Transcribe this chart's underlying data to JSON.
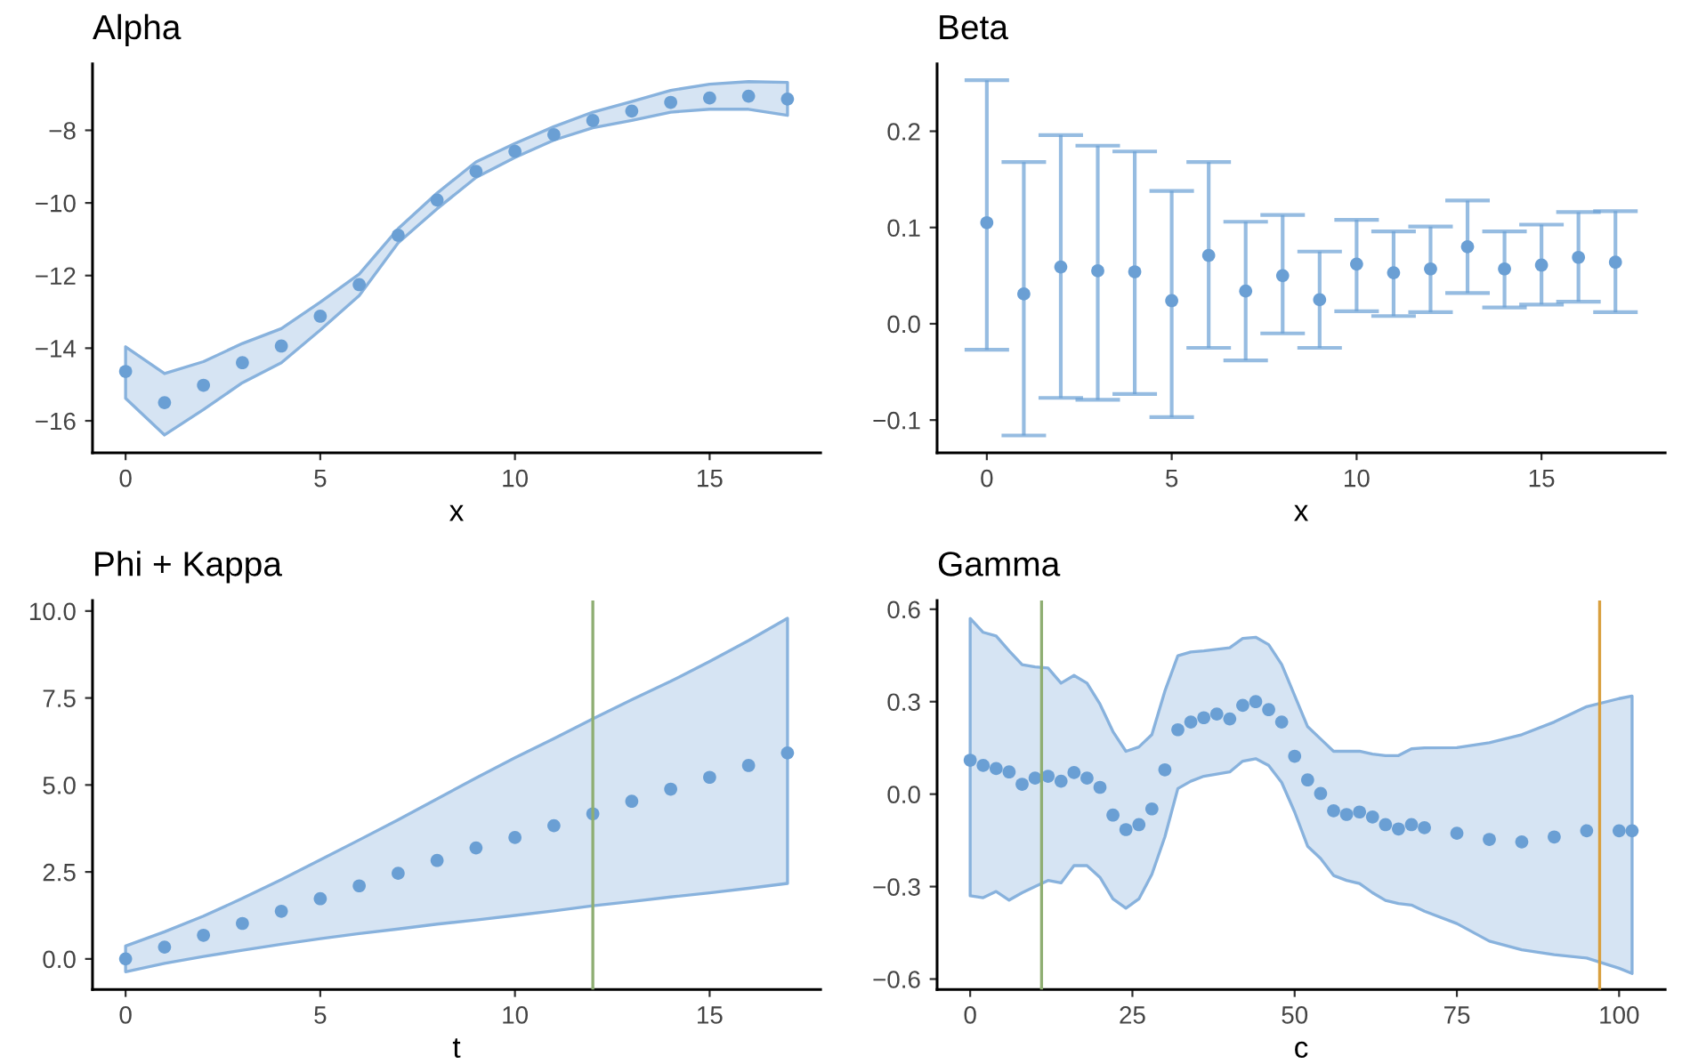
{
  "chart_data": [
    {
      "type": "scatter",
      "title": "Alpha",
      "xlabel": "x",
      "marker": "circle",
      "grid": false,
      "x": [
        0,
        1,
        2,
        3,
        4,
        5,
        6,
        7,
        8,
        9,
        10,
        11,
        12,
        13,
        14,
        15,
        16,
        17
      ],
      "xlim": [
        -0.85,
        17.85
      ],
      "xticks": [
        0,
        5,
        10,
        15
      ],
      "ylim": [
        -16.88,
        -6.17
      ],
      "yticks": [
        {
          "value": -16,
          "label": "−16"
        },
        {
          "value": -14,
          "label": "−14"
        },
        {
          "value": -12,
          "label": "−12"
        },
        {
          "value": -10,
          "label": "−10"
        },
        {
          "value": -8,
          "label": "−8"
        }
      ],
      "series": [
        {
          "color": "#6a9fd4",
          "values": [
            -14.64,
            -15.5,
            -15.02,
            -14.4,
            -13.94,
            -13.12,
            -12.25,
            -10.89,
            -9.92,
            -9.13,
            -8.58,
            -8.12,
            -7.73,
            -7.47,
            -7.23,
            -7.11,
            -7.06,
            -7.14
          ],
          "lower": [
            -15.38,
            -16.39,
            -15.69,
            -14.95,
            -14.4,
            -13.5,
            -12.55,
            -11.1,
            -10.16,
            -9.3,
            -8.75,
            -8.27,
            -7.93,
            -7.73,
            -7.5,
            -7.42,
            -7.42,
            -7.59
          ],
          "upper": [
            -13.96,
            -14.7,
            -14.37,
            -13.87,
            -13.46,
            -12.73,
            -11.96,
            -10.71,
            -9.73,
            -8.87,
            -8.36,
            -7.9,
            -7.5,
            -7.21,
            -6.9,
            -6.73,
            -6.66,
            -6.68
          ]
        }
      ]
    },
    {
      "type": "scatter",
      "title": "Beta",
      "xlabel": "x",
      "marker": "circle",
      "grid": false,
      "x": [
        0,
        1,
        2,
        3,
        4,
        5,
        6,
        7,
        8,
        9,
        10,
        11,
        12,
        13,
        14,
        15,
        16,
        17
      ],
      "xlim": [
        -1.345,
        18.345
      ],
      "xticks": [
        0,
        5,
        10,
        15
      ],
      "ylim": [
        -0.134,
        0.27
      ],
      "yticks": [
        {
          "value": -0.1,
          "label": "−0.1"
        },
        {
          "value": 0,
          "label": "0.0"
        },
        0.1,
        0.2
      ],
      "series": [
        {
          "color": "#6a9fd4",
          "values": [
            0.105,
            0.031,
            0.059,
            0.055,
            0.054,
            0.024,
            0.071,
            0.034,
            0.05,
            0.025,
            0.062,
            0.053,
            0.057,
            0.08,
            0.057,
            0.061,
            0.069,
            0.064
          ],
          "errors": [
            [
              -0.027,
              0.253
            ],
            [
              -0.116,
              0.168
            ],
            [
              -0.077,
              0.196
            ],
            [
              -0.079,
              0.185
            ],
            [
              -0.073,
              0.179
            ],
            [
              -0.097,
              0.138
            ],
            [
              -0.025,
              0.168
            ],
            [
              -0.038,
              0.106
            ],
            [
              -0.01,
              0.113
            ],
            [
              -0.025,
              0.075
            ],
            [
              0.013,
              0.108
            ],
            [
              0.008,
              0.096
            ],
            [
              0.012,
              0.101
            ],
            [
              0.032,
              0.128
            ],
            [
              0.017,
              0.096
            ],
            [
              0.02,
              0.103
            ],
            [
              0.023,
              0.116
            ],
            [
              0.012,
              0.117
            ]
          ]
        }
      ]
    },
    {
      "type": "scatter",
      "title": "Phi + Kappa",
      "xlabel": "t",
      "marker": "circle",
      "grid": false,
      "x": [
        0,
        1,
        2,
        3,
        4,
        5,
        6,
        7,
        8,
        9,
        10,
        11,
        12,
        13,
        14,
        15,
        16,
        17
      ],
      "xlim": [
        -0.85,
        17.85
      ],
      "xticks": [
        0,
        5,
        10,
        15
      ],
      "ylim": [
        -0.88,
        10.3
      ],
      "yticks": [
        {
          "value": 0,
          "label": "0.0"
        },
        2.5,
        {
          "value": 5,
          "label": "5.0"
        },
        7.5,
        {
          "value": 10,
          "label": "10.0"
        }
      ],
      "ref_lines": [
        {
          "axis": "x",
          "value": 12,
          "color": "#8fae73"
        }
      ],
      "series": [
        {
          "color": "#6a9fd4",
          "values": [
            0,
            0.34,
            0.68,
            1.02,
            1.37,
            1.73,
            2.1,
            2.46,
            2.83,
            3.19,
            3.49,
            3.83,
            4.17,
            4.53,
            4.88,
            5.22,
            5.56,
            5.92
          ],
          "lower": [
            -0.37,
            -0.13,
            0.07,
            0.25,
            0.42,
            0.58,
            0.73,
            0.86,
            1.0,
            1.12,
            1.25,
            1.38,
            1.53,
            1.65,
            1.78,
            1.9,
            2.03,
            2.17
          ],
          "upper": [
            0.37,
            0.78,
            1.23,
            1.74,
            2.28,
            2.85,
            3.42,
            4.0,
            4.6,
            5.2,
            5.78,
            6.33,
            6.9,
            7.45,
            7.98,
            8.55,
            9.15,
            9.79
          ]
        }
      ]
    },
    {
      "type": "scatter",
      "title": "Gamma",
      "xlabel": "c",
      "marker": "circle",
      "grid": false,
      "x": [
        0,
        2,
        4,
        6,
        8,
        10,
        12,
        14,
        16,
        18,
        20,
        22,
        24,
        26,
        28,
        30,
        32,
        34,
        36,
        38,
        40,
        42,
        44,
        46,
        48,
        50,
        52,
        54,
        56,
        58,
        60,
        62,
        64,
        66,
        68,
        70,
        75,
        80,
        85,
        90,
        95,
        100,
        102
      ],
      "xlim": [
        -5.1,
        107.1
      ],
      "xticks": [
        0,
        25,
        50,
        75,
        100
      ],
      "ylim": [
        -0.634,
        0.628
      ],
      "yticks": [
        {
          "value": -0.6,
          "label": "−0.6"
        },
        {
          "value": -0.3,
          "label": "−0.3"
        },
        {
          "value": 0,
          "label": "0.0"
        },
        0.3,
        0.6
      ],
      "ref_lines": [
        {
          "axis": "x",
          "value": 11,
          "color": "#8fae73"
        },
        {
          "axis": "x",
          "value": 97,
          "color": "#d9a03f"
        }
      ],
      "series": [
        {
          "color": "#6a9fd4",
          "values": [
            0.11,
            0.093,
            0.083,
            0.072,
            0.032,
            0.052,
            0.058,
            0.042,
            0.07,
            0.052,
            0.022,
            -0.068,
            -0.115,
            -0.099,
            -0.048,
            0.079,
            0.209,
            0.234,
            0.248,
            0.26,
            0.244,
            0.288,
            0.3,
            0.274,
            0.234,
            0.123,
            0.046,
            0.002,
            -0.054,
            -0.066,
            -0.058,
            -0.074,
            -0.099,
            -0.113,
            -0.099,
            -0.109,
            -0.127,
            -0.147,
            -0.155,
            -0.139,
            -0.119,
            -0.119,
            -0.119
          ],
          "lower": [
            -0.33,
            -0.336,
            -0.316,
            -0.344,
            -0.32,
            -0.3,
            -0.28,
            -0.288,
            -0.232,
            -0.232,
            -0.27,
            -0.34,
            -0.37,
            -0.34,
            -0.26,
            -0.139,
            0.018,
            0.042,
            0.058,
            0.065,
            0.072,
            0.107,
            0.115,
            0.093,
            0.038,
            -0.058,
            -0.169,
            -0.209,
            -0.264,
            -0.28,
            -0.29,
            -0.32,
            -0.345,
            -0.355,
            -0.36,
            -0.38,
            -0.42,
            -0.477,
            -0.505,
            -0.521,
            -0.532,
            -0.565,
            -0.582
          ],
          "upper": [
            0.57,
            0.525,
            0.513,
            0.465,
            0.42,
            0.413,
            0.409,
            0.36,
            0.385,
            0.36,
            0.292,
            0.203,
            0.139,
            0.153,
            0.193,
            0.334,
            0.449,
            0.461,
            0.465,
            0.47,
            0.475,
            0.505,
            0.509,
            0.485,
            0.421,
            0.32,
            0.219,
            0.179,
            0.139,
            0.139,
            0.139,
            0.13,
            0.125,
            0.125,
            0.147,
            0.15,
            0.151,
            0.167,
            0.193,
            0.234,
            0.284,
            0.31,
            0.318
          ]
        }
      ]
    }
  ]
}
